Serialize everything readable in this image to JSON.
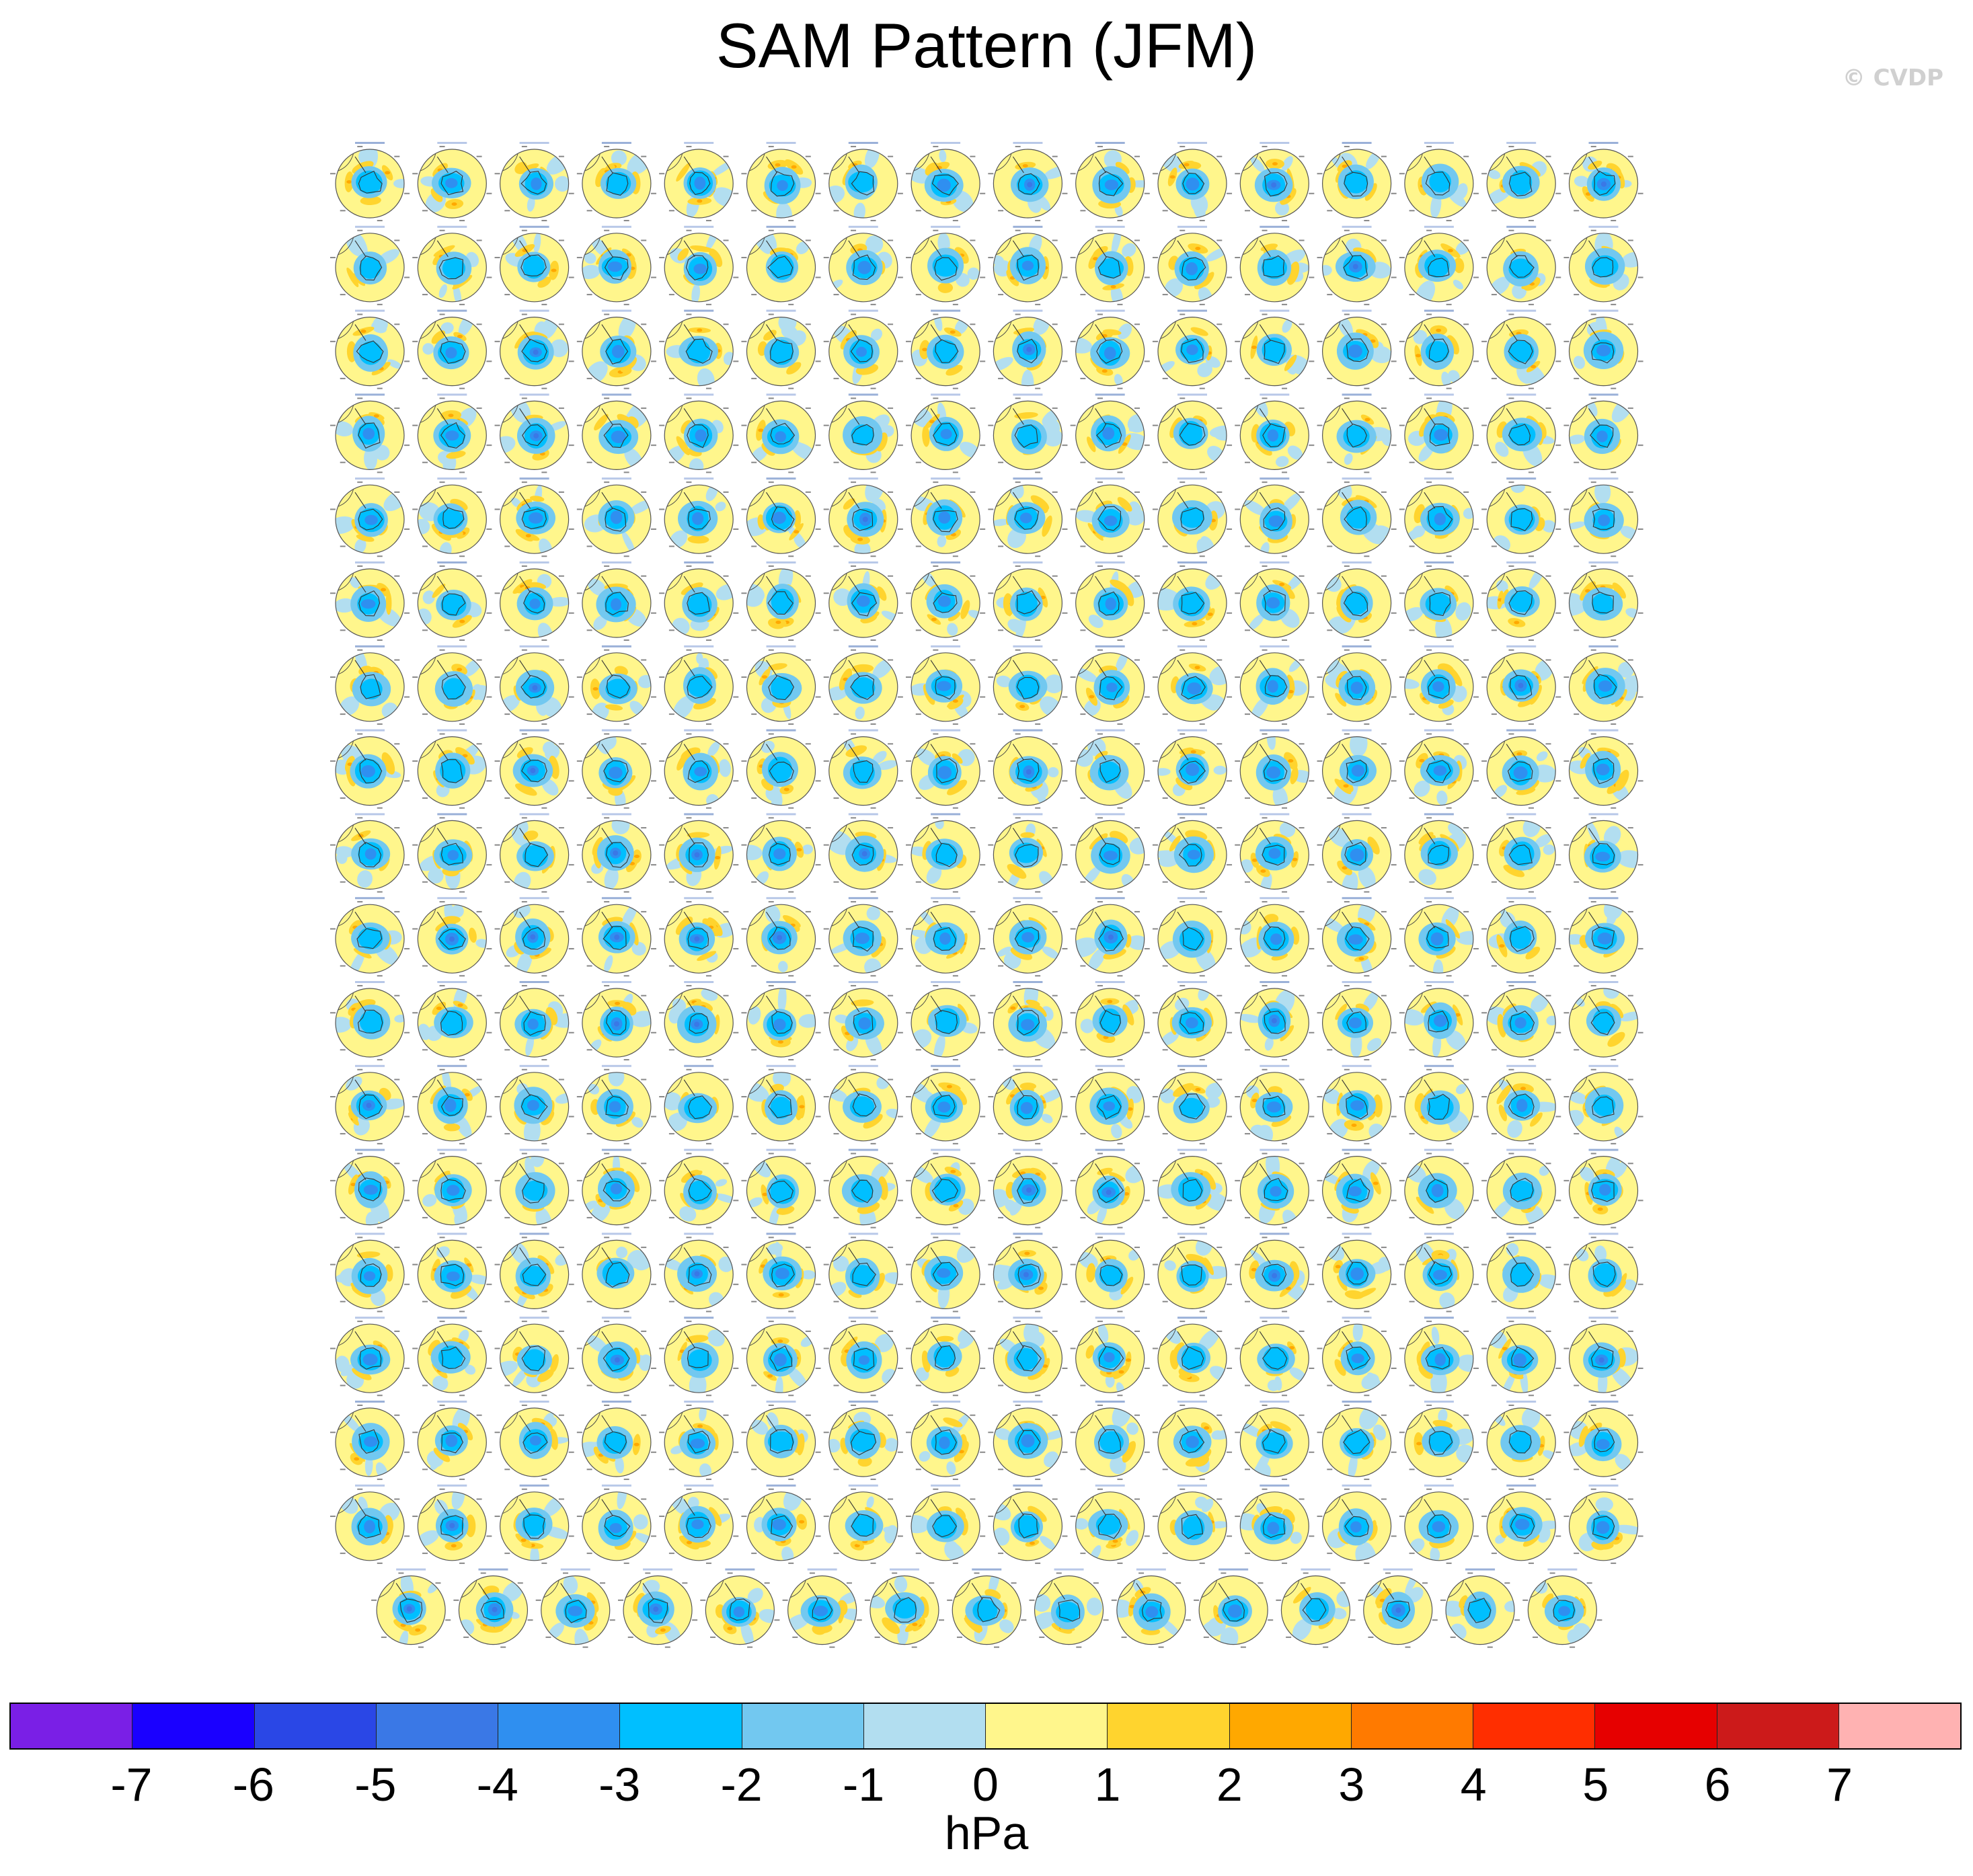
{
  "title": "SAM Pattern (JFM)",
  "watermark": "© CVDP",
  "units": "hPa",
  "chart_data": {
    "type": "heatmap",
    "title": "SAM Pattern (JFM)",
    "description_kind": "grid of south-polar stereographic sea-level-pressure regression maps, one per ensemble member",
    "panel_rows": 18,
    "panel_columns": 16,
    "panels_in_last_row": 15,
    "panel_count": 287,
    "colorbar": {
      "label": "hPa",
      "ticks": [
        -7,
        -6,
        -5,
        -4,
        -3,
        -2,
        -1,
        0,
        1,
        2,
        3,
        4,
        5,
        6,
        7
      ],
      "colors": [
        "#7a1fe6",
        "#1a00ff",
        "#2a47e6",
        "#3a78e6",
        "#2f8ff0",
        "#00bfff",
        "#72c8f0",
        "#b2def0",
        "#fff68c",
        "#ffd42e",
        "#ffa800",
        "#ff7a00",
        "#ff2e00",
        "#e60000",
        "#cc1a1a",
        "#ffb2b2"
      ]
    }
  }
}
